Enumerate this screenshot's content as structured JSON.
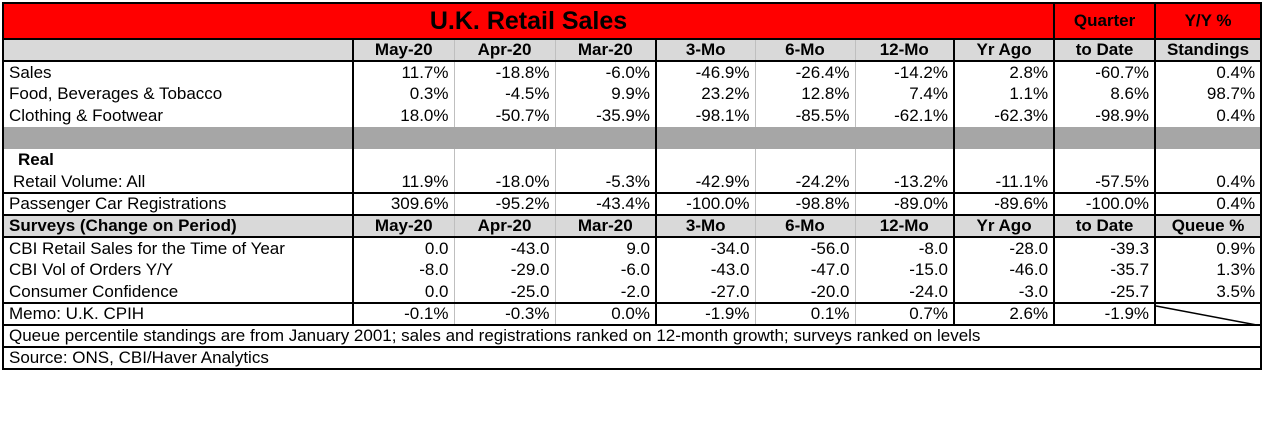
{
  "title": "U.K. Retail Sales",
  "top_headers": {
    "quarter": "Quarter",
    "yy": "Y/Y %"
  },
  "columns": [
    "May-20",
    "Apr-20",
    "Mar-20",
    "3-Mo",
    "6-Mo",
    "12-Mo",
    "Yr Ago",
    "to Date",
    "Standings"
  ],
  "sales_rows": [
    {
      "label": "Sales",
      "values": [
        "11.7%",
        "-18.8%",
        "-6.0%",
        "-46.9%",
        "-26.4%",
        "-14.2%",
        "2.8%",
        "-60.7%",
        "0.4%"
      ]
    },
    {
      "label": "Food, Beverages & Tobacco",
      "values": [
        "0.3%",
        "-4.5%",
        "9.9%",
        "23.2%",
        "12.8%",
        "7.4%",
        "1.1%",
        "8.6%",
        "98.7%"
      ]
    },
    {
      "label": "Clothing & Footwear",
      "values": [
        "18.0%",
        "-50.7%",
        "-35.9%",
        "-98.1%",
        "-85.5%",
        "-62.1%",
        "-62.3%",
        "-98.9%",
        "0.4%"
      ]
    }
  ],
  "real": {
    "heading": "Real",
    "row": {
      "label": "Retail Volume: All",
      "values": [
        "11.9%",
        "-18.0%",
        "-5.3%",
        "-42.9%",
        "-24.2%",
        "-13.2%",
        "-11.1%",
        "-57.5%",
        "0.4%"
      ]
    }
  },
  "car_row": {
    "label": "Passenger Car Registrations",
    "values": [
      "309.6%",
      "-95.2%",
      "-43.4%",
      "-100.0%",
      "-98.8%",
      "-89.0%",
      "-89.6%",
      "-100.0%",
      "0.4%"
    ]
  },
  "surveys": {
    "label": "Surveys (Change on Period)",
    "columns": [
      "May-20",
      "Apr-20",
      "Mar-20",
      "3-Mo",
      "6-Mo",
      "12-Mo",
      "Yr Ago",
      "to Date",
      "Queue %"
    ],
    "rows": [
      {
        "label": "CBI Retail Sales for the Time of Year",
        "values": [
          "0.0",
          "-43.0",
          "9.0",
          "-34.0",
          "-56.0",
          "-8.0",
          "-28.0",
          "-39.3",
          "0.9%"
        ]
      },
      {
        "label": "CBI Vol of Orders Y/Y",
        "values": [
          "-8.0",
          "-29.0",
          "-6.0",
          "-43.0",
          "-47.0",
          "-15.0",
          "-46.0",
          "-35.7",
          "1.3%"
        ]
      },
      {
        "label": "Consumer Confidence",
        "values": [
          "0.0",
          "-25.0",
          "-2.0",
          "-27.0",
          "-20.0",
          "-24.0",
          "-3.0",
          "-25.7",
          "3.5%"
        ]
      }
    ]
  },
  "memo": {
    "label": "Memo: U.K. CPIH",
    "values": [
      "-0.1%",
      "-0.3%",
      "0.0%",
      "-1.9%",
      "0.1%",
      "0.7%",
      "2.6%",
      "-1.9%"
    ]
  },
  "footnote": "Queue percentile standings are from January 2001; sales and registrations ranked on 12-month growth; surveys ranked on levels",
  "source": "Source: ONS, CBI/Haver Analytics",
  "colors": {
    "title_bg": "#ff0000",
    "header_bg": "#d9d9d9",
    "band_bg": "#a6a6a6"
  }
}
